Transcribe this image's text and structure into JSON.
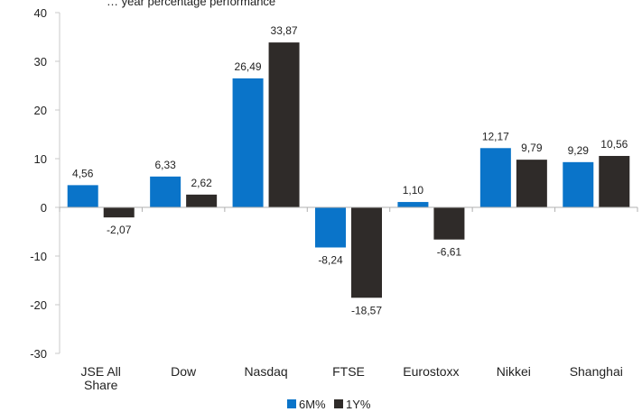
{
  "chart_data": {
    "type": "bar",
    "title": "… year percentage performance",
    "categories": [
      "JSE All Share",
      "Dow",
      "Nasdaq",
      "FTSE",
      "Eurostoxx",
      "Nikkei",
      "Shanghai"
    ],
    "category_lines": [
      [
        "JSE All",
        "Share"
      ],
      [
        "Dow"
      ],
      [
        "Nasdaq"
      ],
      [
        "FTSE"
      ],
      [
        "Eurostoxx"
      ],
      [
        "Nikkei"
      ],
      [
        "Shanghai"
      ]
    ],
    "series": [
      {
        "name": "6M%",
        "color": "#0a74c9",
        "values": [
          4.56,
          6.33,
          26.49,
          -8.24,
          1.1,
          12.17,
          9.29
        ],
        "labels": [
          "4,56",
          "6,33",
          "26,49",
          "-8,24",
          "1,10",
          "12,17",
          "9,29"
        ]
      },
      {
        "name": "1Y%",
        "color": "#2f2b29",
        "values": [
          -2.07,
          2.62,
          33.87,
          -18.57,
          -6.61,
          9.79,
          10.56
        ],
        "labels": [
          "-2,07",
          "2,62",
          "33,87",
          "-18,57",
          "-6,61",
          "9,79",
          "10,56"
        ]
      }
    ],
    "yticks": [
      "40",
      "30",
      "20",
      "10",
      "0",
      "-10",
      "-20",
      "-30"
    ],
    "ylim": [
      -30,
      40
    ],
    "grid": false,
    "legend": "bottom-center",
    "xlabel": "",
    "ylabel": ""
  }
}
